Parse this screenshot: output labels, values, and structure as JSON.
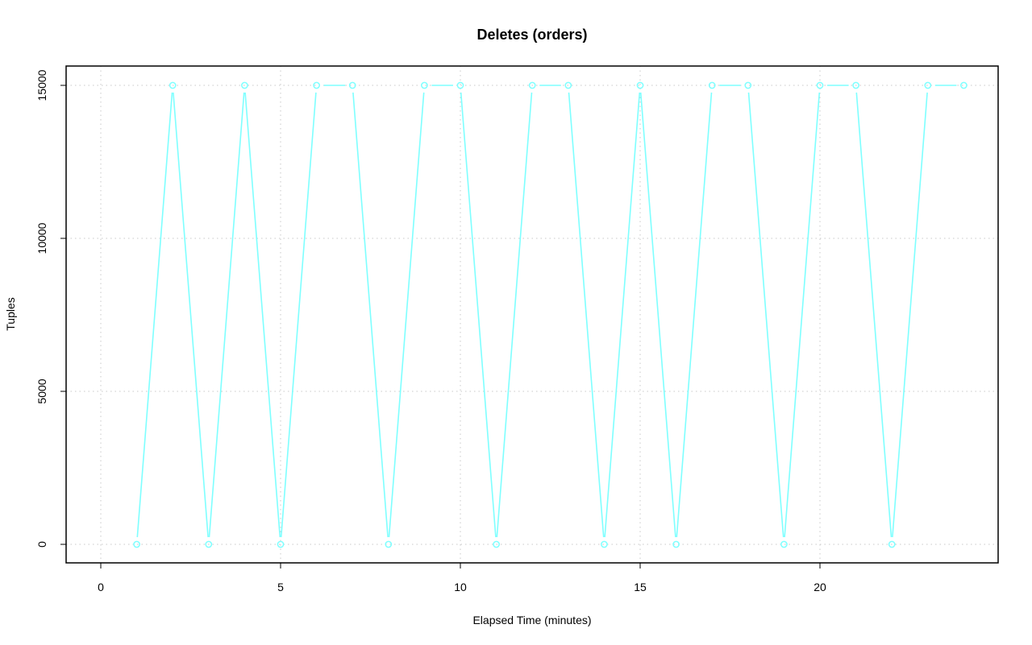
{
  "chart_data": {
    "type": "line",
    "title": "Deletes (orders)",
    "xlabel": "Elapsed Time (minutes)",
    "ylabel": "Tuples",
    "xlim": [
      0,
      24
    ],
    "ylim": [
      0,
      15000
    ],
    "x_ticks": [
      0,
      5,
      10,
      15,
      20
    ],
    "y_ticks": [
      0,
      5000,
      10000,
      15000
    ],
    "grid": true,
    "series": [
      {
        "color": "#7fffff",
        "x": [
          1,
          2,
          3,
          4,
          5,
          6,
          7,
          8,
          9,
          10,
          11,
          12,
          13,
          14,
          15,
          16,
          17,
          18,
          19,
          20,
          21,
          22,
          23,
          24
        ],
        "values": [
          0,
          15000,
          0,
          15000,
          0,
          15000,
          15000,
          0,
          15000,
          15000,
          0,
          15000,
          15000,
          0,
          15000,
          0,
          15000,
          15000,
          0,
          15000,
          15000,
          0,
          15000,
          15000
        ]
      }
    ]
  }
}
